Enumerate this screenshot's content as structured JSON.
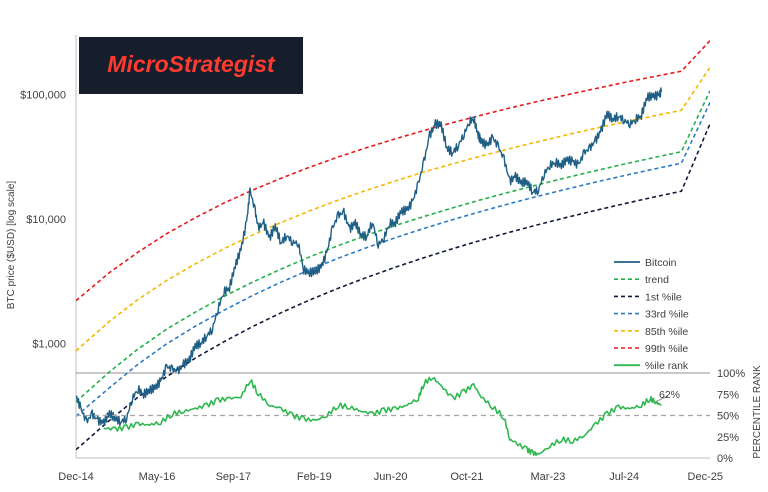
{
  "logo": {
    "text": "MicroStrategist",
    "background": "#161d2b",
    "color": "#ff3b30"
  },
  "chart_data": {
    "type": "line",
    "title": "",
    "ylabel": "BTC price ($USD) [log scale]",
    "ylabel_right": "PERCENTILE RANK",
    "y_scale": "log",
    "ylim": [
      120,
      300000
    ],
    "y_right_lim": [
      0,
      100
    ],
    "x_ticks": [
      "Dec-14",
      "May-16",
      "Sep-17",
      "Feb-19",
      "Jun-20",
      "Oct-21",
      "Mar-23",
      "Jul-24",
      "Dec-25"
    ],
    "x_tick_years": [
      2014.917,
      2016.333,
      2017.667,
      2019.083,
      2020.417,
      2021.75,
      2023.167,
      2024.5,
      2025.917
    ],
    "xlim": [
      2014.917,
      2026.0
    ],
    "y_ticks_left": [
      {
        "value": 1000,
        "label": "$1,000"
      },
      {
        "value": 10000,
        "label": "$10,000"
      },
      {
        "value": 100000,
        "label": "$100,000"
      }
    ],
    "y_ticks_right": [
      {
        "value": 0,
        "label": "0%"
      },
      {
        "value": 25,
        "label": "25%"
      },
      {
        "value": 50,
        "label": "50%"
      },
      {
        "value": 75,
        "label": "75%"
      },
      {
        "value": 100,
        "label": "100%"
      }
    ],
    "legend_position": "right",
    "legend": [
      {
        "key": "bitcoin",
        "label": "Bitcoin",
        "color": "#1f5f86",
        "dash": ""
      },
      {
        "key": "trend",
        "label": "trend",
        "color": "#22b04a",
        "dash": "4,3"
      },
      {
        "key": "p1",
        "label": "1st %ile",
        "color": "#111a3a",
        "dash": "4,3"
      },
      {
        "key": "p33",
        "label": "33rd %ile",
        "color": "#2b7bc4",
        "dash": "4,3"
      },
      {
        "key": "p85",
        "label": "85th %ile",
        "color": "#f5b800",
        "dash": "4,3"
      },
      {
        "key": "p99",
        "label": "99th %ile",
        "color": "#e51b1b",
        "dash": "4,3"
      },
      {
        "key": "rank",
        "label": "%ile rank",
        "color": "#2eb84f",
        "dash": ""
      }
    ],
    "bands": {
      "years": [
        2014.917,
        2015.5,
        2016.0,
        2016.5,
        2017.0,
        2017.5,
        2018.0,
        2018.5,
        2019.0,
        2019.5,
        2020.0,
        2020.5,
        2021.0,
        2021.5,
        2022.0,
        2022.5,
        2023.0,
        2023.5,
        2024.0,
        2024.5,
        2025.0,
        2025.5,
        2026.0
      ],
      "p99": [
        2200,
        3700,
        5400,
        7600,
        10200,
        13400,
        17000,
        21200,
        26000,
        31400,
        37400,
        44000,
        51300,
        59300,
        68100,
        77700,
        88000,
        99300,
        111400,
        124500,
        138500,
        153700,
        270000
      ],
      "p85": [
        870,
        1500,
        2250,
        3200,
        4350,
        5750,
        7400,
        9350,
        11600,
        14150,
        17000,
        20200,
        23800,
        27700,
        32000,
        36700,
        41800,
        47400,
        53400,
        59900,
        66900,
        74500,
        165000
      ],
      "trend": [
        340,
        590,
        900,
        1300,
        1780,
        2380,
        3100,
        3950,
        4950,
        6100,
        7400,
        8850,
        10450,
        12250,
        14250,
        16450,
        18850,
        21500,
        24400,
        27550,
        30950,
        34650,
        107000
      ],
      "p33": [
        260,
        440,
        680,
        990,
        1370,
        1840,
        2420,
        3100,
        3900,
        4830,
        5880,
        7060,
        8380,
        9850,
        11480,
        13270,
        15230,
        17390,
        19730,
        22280,
        25030,
        28010,
        86000
      ],
      "p1": [
        140,
        240,
        370,
        540,
        760,
        1030,
        1360,
        1760,
        2230,
        2770,
        3390,
        4090,
        4880,
        5760,
        6740,
        7820,
        9000,
        10300,
        11700,
        13250,
        14900,
        16700,
        58000
      ]
    },
    "bitcoin": {
      "years": [
        2014.917,
        2015.0,
        2015.1,
        2015.2,
        2015.3,
        2015.4,
        2015.5,
        2015.6,
        2015.7,
        2015.8,
        2015.9,
        2016.0,
        2016.1,
        2016.2,
        2016.3,
        2016.4,
        2016.5,
        2016.6,
        2016.7,
        2016.8,
        2016.9,
        2017.0,
        2017.1,
        2017.2,
        2017.3,
        2017.4,
        2017.5,
        2017.6,
        2017.7,
        2017.8,
        2017.9,
        2017.96,
        2018.05,
        2018.1,
        2018.2,
        2018.3,
        2018.4,
        2018.5,
        2018.6,
        2018.7,
        2018.8,
        2018.9,
        2019.0,
        2019.1,
        2019.2,
        2019.3,
        2019.4,
        2019.5,
        2019.6,
        2019.7,
        2019.8,
        2019.9,
        2020.0,
        2020.1,
        2020.2,
        2020.3,
        2020.4,
        2020.5,
        2020.6,
        2020.7,
        2020.8,
        2020.9,
        2021.0,
        2021.1,
        2021.2,
        2021.3,
        2021.4,
        2021.5,
        2021.6,
        2021.7,
        2021.8,
        2021.87,
        2021.95,
        2022.0,
        2022.1,
        2022.2,
        2022.3,
        2022.4,
        2022.5,
        2022.6,
        2022.7,
        2022.8,
        2022.9,
        2023.0,
        2023.1,
        2023.2,
        2023.3,
        2023.4,
        2023.5,
        2023.6,
        2023.7,
        2023.8,
        2023.9,
        2024.0,
        2024.1,
        2024.2,
        2024.3,
        2024.4,
        2024.5,
        2024.6,
        2024.7,
        2024.8,
        2024.9,
        2025.0,
        2025.1,
        2025.15
      ],
      "values": [
        380,
        300,
        235,
        270,
        240,
        230,
        275,
        250,
        235,
        250,
        360,
        430,
        390,
        420,
        440,
        500,
        650,
        620,
        600,
        680,
        740,
        960,
        1000,
        1150,
        1300,
        1900,
        2600,
        2800,
        4200,
        5700,
        9500,
        17000,
        11500,
        8500,
        9200,
        7000,
        8800,
        6400,
        7400,
        6500,
        6400,
        3900,
        3700,
        3800,
        4100,
        5300,
        8400,
        10700,
        11200,
        8300,
        9300,
        7400,
        7200,
        9500,
        6200,
        7000,
        9200,
        9300,
        11500,
        11800,
        13700,
        19000,
        29000,
        47000,
        58000,
        57000,
        37000,
        34000,
        39000,
        48000,
        61000,
        64000,
        47000,
        42000,
        39000,
        45000,
        38000,
        30000,
        20000,
        22000,
        19500,
        20000,
        16500,
        17000,
        23000,
        27000,
        28500,
        27000,
        30000,
        29000,
        27000,
        34000,
        37000,
        42500,
        52000,
        70000,
        63000,
        67000,
        62000,
        58000,
        63000,
        68000,
        95000,
        97000,
        98000,
        105000
      ],
      "last_label": ""
    },
    "percentile_rank": {
      "years": [
        2015.4,
        2015.6,
        2015.8,
        2016.0,
        2016.2,
        2016.4,
        2016.6,
        2016.8,
        2017.0,
        2017.2,
        2017.4,
        2017.6,
        2017.8,
        2017.96,
        2018.1,
        2018.3,
        2018.5,
        2018.7,
        2018.9,
        2019.1,
        2019.3,
        2019.5,
        2019.7,
        2019.9,
        2020.1,
        2020.3,
        2020.5,
        2020.7,
        2020.9,
        2021.0,
        2021.15,
        2021.3,
        2021.5,
        2021.7,
        2021.87,
        2022.0,
        2022.2,
        2022.4,
        2022.5,
        2022.6,
        2022.8,
        2022.9,
        2023.0,
        2023.2,
        2023.4,
        2023.6,
        2023.8,
        2024.0,
        2024.2,
        2024.4,
        2024.6,
        2024.8,
        2024.95,
        2025.05,
        2025.15
      ],
      "values": [
        35,
        34,
        36,
        40,
        39,
        42,
        52,
        55,
        58,
        62,
        68,
        70,
        72,
        92,
        76,
        62,
        58,
        50,
        46,
        44,
        50,
        62,
        60,
        55,
        52,
        56,
        58,
        62,
        70,
        88,
        95,
        85,
        70,
        78,
        86,
        72,
        60,
        48,
        22,
        18,
        10,
        6,
        4,
        14,
        22,
        20,
        26,
        40,
        52,
        60,
        58,
        62,
        70,
        66,
        62
      ],
      "annotation": "62%"
    },
    "midline_value": 50
  }
}
